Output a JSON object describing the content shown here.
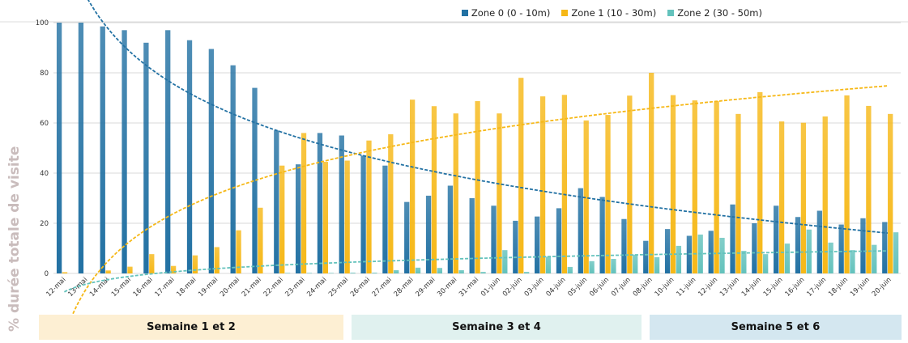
{
  "chart_data": {
    "type": "bar",
    "title": "",
    "xlabel": "",
    "ylabel": "% durée totale de visite",
    "ylim": [
      0,
      100
    ],
    "yticks": [
      0,
      20,
      40,
      60,
      80,
      100
    ],
    "grid": true,
    "legend_position": "top-right",
    "categories": [
      "12-mai",
      "13-mai",
      "14-mai",
      "15-mai",
      "16-mai",
      "17-mai",
      "18-mai",
      "19-mai",
      "20-mai",
      "21-mai",
      "22-mai",
      "23-mai",
      "24-mai",
      "25-mai",
      "26-mai",
      "27-mai",
      "28-mai",
      "29-mai",
      "30-mai",
      "31-mai",
      "01-juin",
      "02-juin",
      "03-juin",
      "04-juin",
      "05-juin",
      "06-juin",
      "07-juin",
      "08-juin",
      "10-juin",
      "11-juin",
      "12-juin",
      "13-juin",
      "14-juin",
      "15-juin",
      "16-juin",
      "17-juin",
      "18-juin",
      "19-juin",
      "20-juin"
    ],
    "series": [
      {
        "name": "Zone 0 (0 - 10m)",
        "color": "#2271a3",
        "trendline": "logarithmic",
        "values": [
          100,
          100,
          98.5,
          97,
          92,
          97,
          93,
          89.5,
          83,
          74,
          57,
          43.5,
          56,
          55,
          47,
          43,
          28.5,
          31,
          35,
          30,
          27,
          21,
          22.7,
          26,
          34,
          30.5,
          21.7,
          13,
          17.7,
          15,
          17,
          27.5,
          20,
          27,
          22.5,
          25,
          19.5,
          22,
          20.5
        ]
      },
      {
        "name": "Zone 1 (10 - 30m)",
        "color": "#f6b817",
        "trendline": "logarithmic",
        "values": [
          0.5,
          0,
          1.2,
          2.7,
          7.7,
          3,
          7.2,
          10.5,
          17.2,
          26.2,
          43,
          56,
          44.5,
          45,
          53,
          55.5,
          69.3,
          66.7,
          63.8,
          68.7,
          63.8,
          78,
          70.6,
          71.2,
          61,
          63.2,
          70.9,
          80,
          71.1,
          69,
          68.7,
          63.6,
          72.3,
          60.6,
          60.1,
          62.6,
          71,
          66.8,
          63.6
        ]
      },
      {
        "name": "Zone 2 (30 - 50m)",
        "color": "#63c2bc",
        "trendline": "logarithmic",
        "values": [
          0,
          0,
          0,
          0,
          0,
          0,
          0,
          0,
          0,
          0,
          0.2,
          0.2,
          0.2,
          0.3,
          0.3,
          1.3,
          2.3,
          2.2,
          1.3,
          0.6,
          9.3,
          0.6,
          6.7,
          2.6,
          4.9,
          5.8,
          7.5,
          6.5,
          11,
          15.5,
          14.2,
          9,
          7.7,
          11.9,
          17.5,
          12.3,
          9.3,
          11.4,
          16.4
        ]
      }
    ]
  },
  "weeks": [
    {
      "label": "Semaine 1 et 2",
      "color": "#fdefd3"
    },
    {
      "label": "Semaine 3 et 4",
      "color": "#e0f1ef"
    },
    {
      "label": "Semaine 5 et 6",
      "color": "#d4e7f0"
    }
  ]
}
